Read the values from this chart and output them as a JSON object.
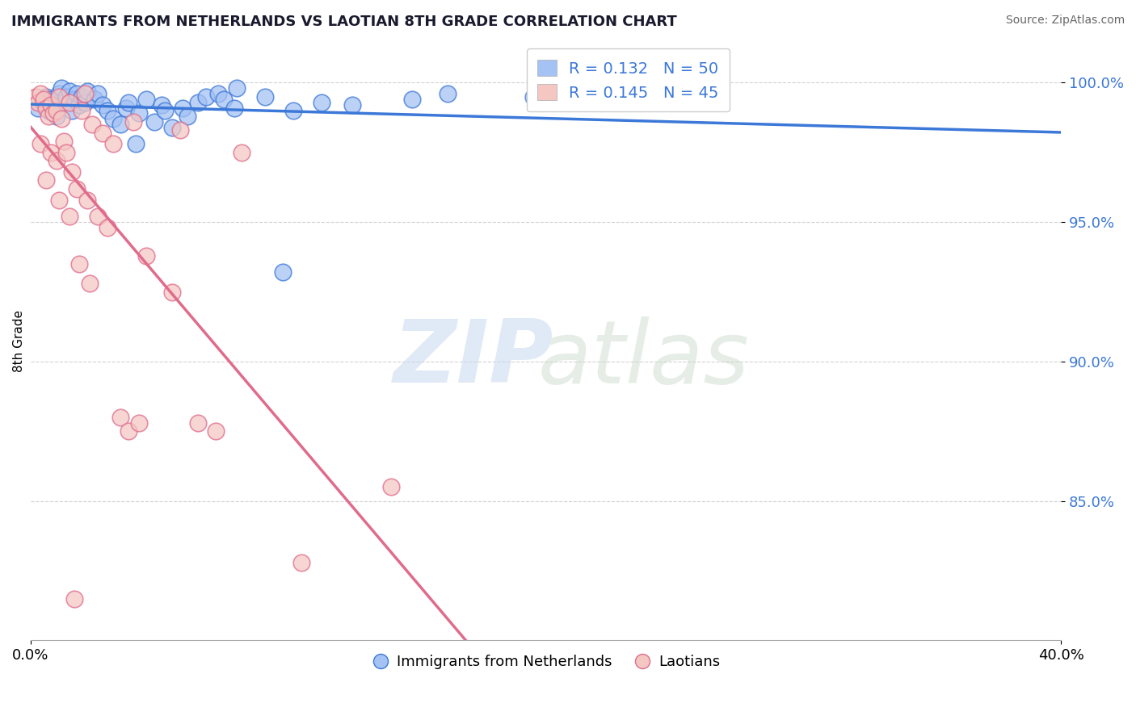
{
  "title": "IMMIGRANTS FROM NETHERLANDS VS LAOTIAN 8TH GRADE CORRELATION CHART",
  "source": "Source: ZipAtlas.com",
  "ylabel": "8th Grade",
  "xlim": [
    0.0,
    40.0
  ],
  "ylim": [
    80.0,
    101.5
  ],
  "yticks": [
    85.0,
    90.0,
    95.0,
    100.0
  ],
  "ytick_labels": [
    "85.0%",
    "90.0%",
    "95.0%",
    "100.0%"
  ],
  "xtick_labels": [
    "0.0%",
    "40.0%"
  ],
  "legend_blue_label": "Immigrants from Netherlands",
  "legend_pink_label": "Laotians",
  "R_blue": 0.132,
  "N_blue": 50,
  "R_pink": 0.145,
  "N_pink": 45,
  "blue_color": "#a4c2f4",
  "pink_color": "#f4c7c3",
  "blue_line_color": "#3c78d8",
  "pink_line_color": "#e06b8b",
  "blue_x": [
    0.3,
    0.5,
    0.6,
    0.7,
    0.8,
    0.9,
    1.0,
    1.1,
    1.2,
    1.3,
    1.4,
    1.5,
    1.6,
    1.7,
    1.8,
    1.9,
    2.0,
    2.1,
    2.2,
    2.5,
    2.6,
    2.8,
    3.0,
    3.2,
    3.5,
    3.7,
    3.8,
    4.1,
    4.2,
    4.5,
    4.8,
    5.1,
    5.2,
    5.5,
    5.9,
    6.1,
    6.5,
    6.8,
    7.3,
    7.5,
    7.9,
    8.0,
    9.1,
    9.8,
    10.2,
    11.3,
    12.5,
    14.8,
    16.2,
    19.5
  ],
  "blue_y": [
    99.1,
    99.3,
    99.5,
    99.0,
    99.4,
    99.2,
    98.8,
    99.6,
    99.8,
    99.3,
    99.5,
    99.7,
    99.0,
    99.4,
    99.6,
    99.2,
    99.5,
    99.3,
    99.7,
    99.4,
    99.6,
    99.2,
    99.0,
    98.7,
    98.5,
    99.1,
    99.3,
    97.8,
    98.9,
    99.4,
    98.6,
    99.2,
    99.0,
    98.4,
    99.1,
    98.8,
    99.3,
    99.5,
    99.6,
    99.4,
    99.1,
    99.8,
    99.5,
    93.2,
    99.0,
    99.3,
    99.2,
    99.4,
    99.6,
    99.5
  ],
  "pink_x": [
    0.2,
    0.3,
    0.4,
    0.4,
    0.5,
    0.6,
    0.6,
    0.7,
    0.8,
    0.8,
    0.9,
    1.0,
    1.0,
    1.1,
    1.1,
    1.2,
    1.3,
    1.4,
    1.5,
    1.5,
    1.6,
    1.7,
    1.8,
    1.9,
    2.0,
    2.1,
    2.2,
    2.3,
    2.4,
    2.6,
    2.8,
    3.0,
    3.2,
    3.5,
    3.8,
    4.0,
    4.2,
    4.5,
    5.5,
    5.8,
    6.5,
    7.2,
    8.2,
    10.5,
    14.0
  ],
  "pink_y": [
    99.5,
    99.3,
    99.6,
    97.8,
    99.4,
    99.1,
    96.5,
    98.8,
    99.2,
    97.5,
    98.9,
    99.0,
    97.2,
    99.5,
    95.8,
    98.7,
    97.9,
    97.5,
    99.3,
    95.2,
    96.8,
    81.5,
    96.2,
    93.5,
    99.0,
    99.6,
    95.8,
    92.8,
    98.5,
    95.2,
    98.2,
    94.8,
    97.8,
    88.0,
    87.5,
    98.6,
    87.8,
    93.8,
    92.5,
    98.3,
    87.8,
    87.5,
    97.5,
    82.8,
    85.5
  ]
}
